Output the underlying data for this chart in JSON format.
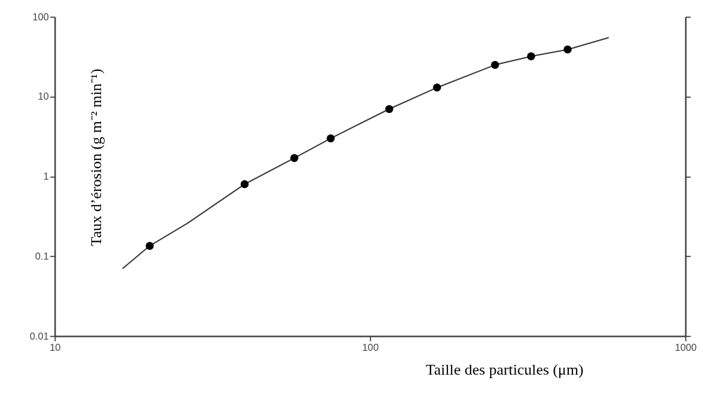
{
  "chart_data": {
    "type": "scatter",
    "xlabel": "Taille des particules (μm)",
    "ylabel": "Taux d’érosion (g m⁻² min⁻¹)",
    "log": "xy",
    "marker": "circle",
    "xlim": [
      10,
      1000
    ],
    "xticks": [
      10,
      100,
      1000
    ],
    "ylim": [
      0.01,
      100
    ],
    "yticks": [
      0.01,
      0.1,
      1,
      10,
      100
    ],
    "series": [
      {
        "type": "scatter",
        "color": "#000000",
        "x": [
          20,
          40,
          57.5,
          75,
          115,
          163,
          249,
          324,
          423
        ],
        "values": [
          0.135,
          0.8,
          1.7,
          3,
          7,
          13,
          25,
          32,
          39
        ]
      },
      {
        "type": "line",
        "marker": "none",
        "color": "#333333",
        "x": [
          16.4,
          20,
          26.4,
          40,
          57.5,
          75,
          115,
          163,
          249,
          324,
          423,
          571
        ],
        "values": [
          0.07,
          0.135,
          0.26,
          0.8,
          1.7,
          3,
          7,
          13,
          25,
          32,
          39,
          55
        ]
      }
    ]
  }
}
